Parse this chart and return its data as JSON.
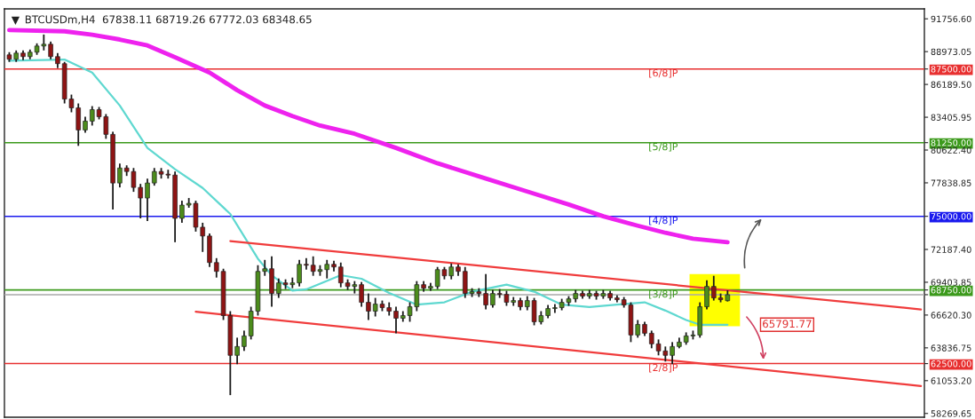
{
  "chart_data": {
    "type": "candlestick",
    "title": "BTCUSDm,H4  67838.11 68719.26 67772.03 68348.65",
    "categories": [
      null,
      null,
      null,
      null,
      null,
      null,
      null,
      null,
      null,
      null,
      null,
      null,
      null,
      null,
      null,
      null,
      null,
      null,
      null,
      null,
      null,
      null,
      null,
      null,
      null,
      null,
      null,
      null,
      null,
      null,
      null,
      null,
      null,
      null,
      null,
      null,
      null,
      null,
      null,
      null,
      null,
      null,
      null,
      null,
      null,
      null,
      null,
      null,
      null,
      null,
      null,
      null,
      null,
      null,
      null,
      null,
      null,
      null,
      null,
      null,
      null,
      null,
      null,
      null,
      null,
      null,
      null,
      null,
      null,
      null,
      null,
      null,
      null,
      null,
      null,
      null,
      null,
      null,
      null,
      null,
      null,
      null,
      null,
      null,
      null,
      null,
      null,
      null,
      null,
      null,
      null,
      null,
      null,
      null,
      null,
      null,
      null,
      null,
      null,
      null,
      null,
      null,
      null,
      null,
      null,
      null,
      null,
      null,
      null,
      null,
      null,
      null,
      null,
      null,
      null,
      null,
      null,
      null,
      null,
      null,
      null,
      null,
      null,
      null,
      null,
      null,
      null,
      null,
      null,
      null,
      null,
      null,
      null
    ],
    "ohlc": [
      [
        88700,
        88925,
        88100,
        88325
      ],
      [
        88325,
        89075,
        88100,
        88850
      ],
      [
        88850,
        89075,
        88250,
        88550
      ],
      [
        88550,
        89150,
        88325,
        88925
      ],
      [
        88925,
        89675,
        88700,
        89450
      ],
      [
        89450,
        90425,
        89075,
        89600
      ],
      [
        89600,
        89825,
        88325,
        88550
      ],
      [
        88550,
        88850,
        87575,
        87950
      ],
      [
        87950,
        88100,
        84575,
        84950
      ],
      [
        84950,
        85325,
        83825,
        84200
      ],
      [
        84200,
        84575,
        80975,
        82325
      ],
      [
        82325,
        83450,
        82100,
        83075
      ],
      [
        83075,
        84350,
        82700,
        84050
      ],
      [
        84050,
        84275,
        83225,
        83450
      ],
      [
        83450,
        83675,
        81575,
        81950
      ],
      [
        81950,
        82175,
        75575,
        77825
      ],
      [
        77825,
        79475,
        77450,
        79100
      ],
      [
        79100,
        79325,
        78425,
        78800
      ],
      [
        78800,
        79100,
        77075,
        77450
      ],
      [
        77450,
        77750,
        74825,
        76550
      ],
      [
        76550,
        78200,
        74600,
        77825
      ],
      [
        77825,
        79100,
        77600,
        78800
      ],
      [
        78800,
        79100,
        78200,
        78575
      ],
      [
        78575,
        78950,
        78200,
        78500
      ],
      [
        78500,
        78800,
        72800,
        74825
      ],
      [
        74825,
        76325,
        74450,
        75950
      ],
      [
        75950,
        76550,
        75725,
        76100
      ],
      [
        76100,
        76325,
        73700,
        74075
      ],
      [
        74075,
        74450,
        71975,
        73325
      ],
      [
        73325,
        73550,
        70700,
        71075
      ],
      [
        71075,
        71450,
        69800,
        70325
      ],
      [
        70325,
        70550,
        66200,
        66575
      ],
      [
        66575,
        66950,
        59825,
        63200
      ],
      [
        63200,
        64700,
        62450,
        63950
      ],
      [
        63950,
        65300,
        63575,
        64850
      ],
      [
        64850,
        67325,
        64550,
        66950
      ],
      [
        66950,
        70850,
        66575,
        70325
      ],
      [
        70325,
        71300,
        69950,
        70550
      ],
      [
        70550,
        71600,
        67325,
        68450
      ],
      [
        68450,
        69725,
        68075,
        69350
      ],
      [
        69350,
        69650,
        68825,
        69200
      ],
      [
        69200,
        69800,
        68900,
        69350
      ],
      [
        69350,
        71300,
        69050,
        70925
      ],
      [
        70925,
        71450,
        70475,
        70850
      ],
      [
        70850,
        71600,
        69950,
        70325
      ],
      [
        70325,
        70850,
        69950,
        70475
      ],
      [
        70475,
        71300,
        69725,
        70925
      ],
      [
        70925,
        71225,
        70325,
        70700
      ],
      [
        70700,
        71075,
        68975,
        69350
      ],
      [
        69350,
        69650,
        68750,
        69050
      ],
      [
        69050,
        69500,
        68450,
        69200
      ],
      [
        69200,
        69425,
        67325,
        67700
      ],
      [
        67700,
        68450,
        66200,
        66950
      ],
      [
        66950,
        68075,
        66500,
        67550
      ],
      [
        67550,
        67850,
        66950,
        67250
      ],
      [
        67250,
        67700,
        66575,
        66950
      ],
      [
        66950,
        67325,
        65075,
        66350
      ],
      [
        66350,
        66950,
        66050,
        66575
      ],
      [
        66575,
        67700,
        66050,
        67325
      ],
      [
        67325,
        69500,
        66950,
        69200
      ],
      [
        69200,
        69500,
        68600,
        68900
      ],
      [
        68900,
        69350,
        68675,
        69050
      ],
      [
        69050,
        70700,
        68825,
        70475
      ],
      [
        70475,
        70700,
        69650,
        69950
      ],
      [
        69950,
        71000,
        69650,
        70700
      ],
      [
        70700,
        70925,
        69950,
        70325
      ],
      [
        70325,
        70700,
        68075,
        68450
      ],
      [
        68450,
        68900,
        68150,
        68600
      ],
      [
        68600,
        68900,
        68150,
        68450
      ],
      [
        68450,
        70100,
        67100,
        67475
      ],
      [
        67475,
        68750,
        67250,
        68450
      ],
      [
        68450,
        68825,
        68075,
        68375
      ],
      [
        68375,
        68675,
        67400,
        67700
      ],
      [
        67700,
        68150,
        67400,
        67850
      ],
      [
        67850,
        68075,
        67025,
        67325
      ],
      [
        67325,
        68225,
        67025,
        67850
      ],
      [
        67850,
        68075,
        65750,
        66050
      ],
      [
        66050,
        66950,
        65825,
        66575
      ],
      [
        66575,
        67475,
        66350,
        67175
      ],
      [
        67175,
        67550,
        66800,
        67250
      ],
      [
        67250,
        68000,
        67025,
        67700
      ],
      [
        67700,
        68225,
        67400,
        68000
      ],
      [
        68000,
        68750,
        67700,
        68450
      ],
      [
        68450,
        68675,
        68000,
        68225
      ],
      [
        68225,
        68750,
        68000,
        68450
      ],
      [
        68450,
        68675,
        67925,
        68225
      ],
      [
        68225,
        68750,
        68000,
        68450
      ],
      [
        68450,
        68675,
        67850,
        68075
      ],
      [
        68075,
        68300,
        67700,
        67925
      ],
      [
        67925,
        68150,
        67250,
        67475
      ],
      [
        67475,
        67700,
        64325,
        64925
      ],
      [
        64925,
        66200,
        64700,
        65825
      ],
      [
        65825,
        66050,
        64850,
        65075
      ],
      [
        65075,
        65300,
        63800,
        64175
      ],
      [
        64175,
        64550,
        63200,
        63575
      ],
      [
        63575,
        63950,
        62675,
        63200
      ],
      [
        63200,
        64325,
        62450,
        63950
      ],
      [
        63950,
        64700,
        63800,
        64325
      ],
      [
        64325,
        65150,
        64100,
        64850
      ],
      [
        64850,
        65300,
        64550,
        64925
      ],
      [
        64925,
        67700,
        64700,
        67325
      ],
      [
        67325,
        69575,
        67100,
        69050
      ],
      [
        69050,
        69950,
        67850,
        68075
      ],
      [
        68075,
        68450,
        67700,
        67925
      ],
      [
        67838.11,
        68719.26,
        67772.03,
        68348.65
      ],
      null,
      null,
      null,
      null,
      null,
      null,
      null,
      null,
      null,
      null,
      null,
      null,
      null,
      null,
      null,
      null,
      null,
      null,
      null,
      null,
      null,
      null,
      null,
      null,
      null,
      null,
      null,
      null
    ],
    "colors": [
      "#8e1414",
      "#4c8c1c",
      "#8e1414",
      "#4c8c1c",
      "#4c8c1c",
      "#4c8c1c",
      "#8e1414",
      "#8e1414",
      "#8e1414",
      "#8e1414",
      "#8e1414",
      "#4c8c1c",
      "#4c8c1c",
      "#8e1414",
      "#8e1414",
      "#8e1414",
      "#4c8c1c",
      "#8e1414",
      "#8e1414",
      "#8e1414",
      "#4c8c1c",
      "#4c8c1c",
      "#8e1414",
      "#8e1414",
      "#8e1414",
      "#4c8c1c",
      "#4c8c1c",
      "#8e1414",
      "#8e1414",
      "#8e1414",
      "#8e1414",
      "#8e1414",
      "#8e1414",
      "#4c8c1c",
      "#4c8c1c",
      "#4c8c1c",
      "#4c8c1c",
      "#4c8c1c",
      "#8e1414",
      "#4c8c1c",
      "#8e1414",
      "#4c8c1c",
      "#4c8c1c",
      "#8e1414",
      "#8e1414",
      "#4c8c1c",
      "#4c8c1c",
      "#8e1414",
      "#8e1414",
      "#8e1414",
      "#4c8c1c",
      "#8e1414",
      "#8e1414",
      "#4c8c1c",
      "#8e1414",
      "#8e1414",
      "#8e1414",
      "#4c8c1c",
      "#4c8c1c",
      "#4c8c1c",
      "#8e1414",
      "#4c8c1c",
      "#4c8c1c",
      "#8e1414",
      "#4c8c1c",
      "#8e1414",
      "#8e1414",
      "#4c8c1c",
      "#8e1414",
      "#8e1414",
      "#4c8c1c",
      "#8e1414",
      "#8e1414",
      "#4c8c1c",
      "#8e1414",
      "#4c8c1c",
      "#8e1414",
      "#4c8c1c",
      "#4c8c1c",
      "#4c8c1c",
      "#4c8c1c",
      "#4c8c1c",
      "#4c8c1c",
      "#8e1414",
      "#4c8c1c",
      "#8e1414",
      "#4c8c1c",
      "#8e1414",
      "#8e1414",
      "#8e1414",
      "#8e1414",
      "#4c8c1c",
      "#8e1414",
      "#8e1414",
      "#8e1414",
      "#8e1414",
      "#4c8c1c",
      "#4c8c1c",
      "#4c8c1c",
      "#4c8c1c",
      "#4c8c1c",
      "#4c8c1c",
      "#8e1414",
      "#8e1414",
      "#4c8c1c",
      null,
      null,
      null,
      null,
      null,
      null,
      null,
      null,
      null,
      null,
      null,
      null,
      null,
      null,
      null,
      null,
      null,
      null,
      null,
      null,
      null,
      null,
      null,
      null,
      null,
      null,
      null,
      null
    ],
    "series": [
      {
        "type": "line",
        "color": "#ee22ee",
        "values": [
          90800,
          null,
          null,
          null,
          null,
          null,
          null,
          null,
          90700,
          null,
          null,
          null,
          90400,
          null,
          null,
          null,
          90000,
          null,
          null,
          null,
          89500,
          null,
          null,
          null,
          88500,
          null,
          null,
          null,
          null,
          87200,
          null,
          null,
          null,
          85700,
          null,
          null,
          null,
          84400,
          null,
          null,
          null,
          83500,
          null,
          null,
          null,
          82700,
          null,
          null,
          null,
          null,
          82000,
          null,
          null,
          null,
          null,
          null,
          80800,
          null,
          null,
          null,
          null,
          null,
          79500,
          null,
          null,
          null,
          null,
          null,
          null,
          78200,
          null,
          null,
          null,
          null,
          null,
          77100,
          null,
          null,
          null,
          null,
          null,
          76000,
          null,
          null,
          null,
          null,
          75000,
          null,
          null,
          null,
          null,
          74200,
          null,
          null,
          null,
          73600,
          null,
          null,
          null,
          73100,
          null,
          null,
          null,
          null,
          72800,
          null,
          null,
          null,
          null,
          null,
          null,
          null,
          null,
          null,
          null,
          null,
          null,
          null,
          null,
          null,
          null,
          null,
          null,
          null,
          null,
          null,
          null,
          null,
          null,
          null,
          null,
          null,
          null
        ]
      },
      {
        "type": "line",
        "color": "#5fd8d0",
        "values": [
          88200,
          null,
          null,
          null,
          null,
          null,
          null,
          null,
          88300,
          null,
          null,
          null,
          87200,
          null,
          null,
          null,
          84400,
          null,
          null,
          null,
          80800,
          null,
          null,
          null,
          79000,
          null,
          null,
          null,
          77400,
          null,
          null,
          null,
          75200,
          null,
          null,
          null,
          71400,
          null,
          70000,
          null,
          null,
          68700,
          null,
          68800,
          null,
          null,
          null,
          null,
          70000,
          null,
          null,
          69700,
          null,
          null,
          null,
          68500,
          null,
          null,
          null,
          67500,
          null,
          null,
          null,
          67700,
          null,
          null,
          null,
          68600,
          null,
          null,
          null,
          null,
          69200,
          null,
          null,
          null,
          68600,
          null,
          null,
          null,
          67500,
          null,
          null,
          null,
          67300,
          null,
          null,
          null,
          67500,
          null,
          null,
          null,
          67700,
          null,
          null,
          67000,
          null,
          null,
          66200,
          null,
          65800,
          null,
          null,
          null,
          65800,
          null,
          null,
          null,
          null,
          null,
          null,
          null,
          null,
          null,
          null,
          null,
          null,
          null,
          null,
          null,
          null,
          null,
          null,
          null,
          null,
          null,
          null,
          null,
          null,
          null,
          null,
          null,
          null
        ]
      },
      {
        "type": "line",
        "color": "#f03c3c",
        "values": [
          null,
          null,
          null,
          null,
          null,
          null,
          null,
          null,
          null,
          null,
          null,
          null,
          null,
          null,
          null,
          null,
          null,
          null,
          null,
          null,
          null,
          null,
          null,
          null,
          null,
          null,
          null,
          null,
          null,
          null,
          null,
          null,
          72900,
          null,
          null,
          null,
          null,
          null,
          null,
          null,
          null,
          null,
          null,
          null,
          null,
          null,
          null,
          null,
          null,
          null,
          null,
          null,
          null,
          null,
          null,
          null,
          null,
          null,
          null,
          null,
          null,
          null,
          null,
          null,
          null,
          null,
          null,
          null,
          null,
          null,
          null,
          null,
          null,
          null,
          null,
          null,
          null,
          null,
          null,
          null,
          null,
          null,
          null,
          null,
          null,
          null,
          null,
          null,
          null,
          null,
          null,
          null,
          null,
          null,
          null,
          null,
          null,
          null,
          null,
          null,
          null,
          null,
          null,
          null,
          null,
          null,
          null,
          null,
          null,
          null,
          null,
          null,
          null,
          null,
          null,
          null,
          null,
          null,
          null,
          null,
          null,
          null,
          null,
          null,
          null,
          null,
          null,
          null,
          null,
          null,
          null,
          null,
          67100
        ]
      },
      {
        "type": "line",
        "color": "#f03c3c",
        "values": [
          null,
          null,
          null,
          null,
          null,
          null,
          null,
          null,
          null,
          null,
          null,
          null,
          null,
          null,
          null,
          null,
          null,
          null,
          null,
          null,
          null,
          null,
          null,
          null,
          null,
          null,
          null,
          66900,
          null,
          null,
          null,
          null,
          null,
          null,
          null,
          null,
          null,
          null,
          null,
          null,
          null,
          null,
          null,
          null,
          null,
          null,
          null,
          null,
          null,
          null,
          null,
          null,
          null,
          null,
          null,
          null,
          null,
          null,
          null,
          null,
          null,
          null,
          null,
          null,
          null,
          null,
          null,
          null,
          null,
          null,
          null,
          null,
          null,
          null,
          null,
          null,
          null,
          null,
          null,
          null,
          null,
          null,
          null,
          null,
          null,
          null,
          null,
          null,
          null,
          null,
          null,
          null,
          null,
          null,
          null,
          null,
          null,
          null,
          null,
          null,
          null,
          null,
          null,
          null,
          null,
          null,
          null,
          null,
          null,
          null,
          null,
          null,
          null,
          null,
          null,
          null,
          null,
          null,
          null,
          null,
          null,
          null,
          null,
          null,
          null,
          null,
          null,
          null,
          null,
          null,
          null,
          null,
          60600
        ]
      }
    ],
    "ref_lines": [
      {
        "axis": "y",
        "value": 87500,
        "label": "[6/8]P",
        "color": "#e83030"
      },
      {
        "axis": "y",
        "value": 81250,
        "label": "[5/8]P",
        "color": "#3c9a1c"
      },
      {
        "axis": "y",
        "value": 75000,
        "label": "[4/8]P",
        "color": "#1a1aee"
      },
      {
        "axis": "y",
        "value": 68750,
        "label": "[3/8]P",
        "color": "#3c9a1c"
      },
      {
        "axis": "y",
        "value": 68348.65,
        "color": "#a8a8a8"
      },
      {
        "axis": "y",
        "value": 62500,
        "label": "[2/8]P",
        "color": "#e83030"
      }
    ],
    "annotations": [
      "65791.77"
    ],
    "ylim": [
      57950,
      92600
    ],
    "yticks": [
      {
        "value": 91756.6,
        "label": "91756.60"
      },
      {
        "value": 88973.05,
        "label": "88973.05"
      },
      {
        "value": 87500,
        "label": "87500.00"
      },
      {
        "value": 86189.5,
        "label": "86189.50"
      },
      {
        "value": 83405.95,
        "label": "83405.95"
      },
      {
        "value": 81250,
        "label": "81250.00"
      },
      {
        "value": 80622.4,
        "label": "80622.40"
      },
      {
        "value": 77838.85,
        "label": "77838.85"
      },
      {
        "value": 75000,
        "label": "75000.00"
      },
      {
        "value": 72187.4,
        "label": "72187.40"
      },
      {
        "value": 69403.85,
        "label": "69403.85"
      },
      {
        "value": 68750,
        "label": "68750.00"
      },
      {
        "value": 68348.65,
        "label": null
      },
      {
        "value": 66620.3,
        "label": "66620.30"
      },
      {
        "value": 63836.75,
        "label": "63836.75"
      },
      {
        "value": 62500,
        "label": "62500.00"
      },
      {
        "value": 61053.2,
        "label": "61053.20"
      },
      {
        "value": 58269.65,
        "label": "58269.65"
      }
    ],
    "tick_labels": "y",
    "grid": false,
    "legend": false
  }
}
